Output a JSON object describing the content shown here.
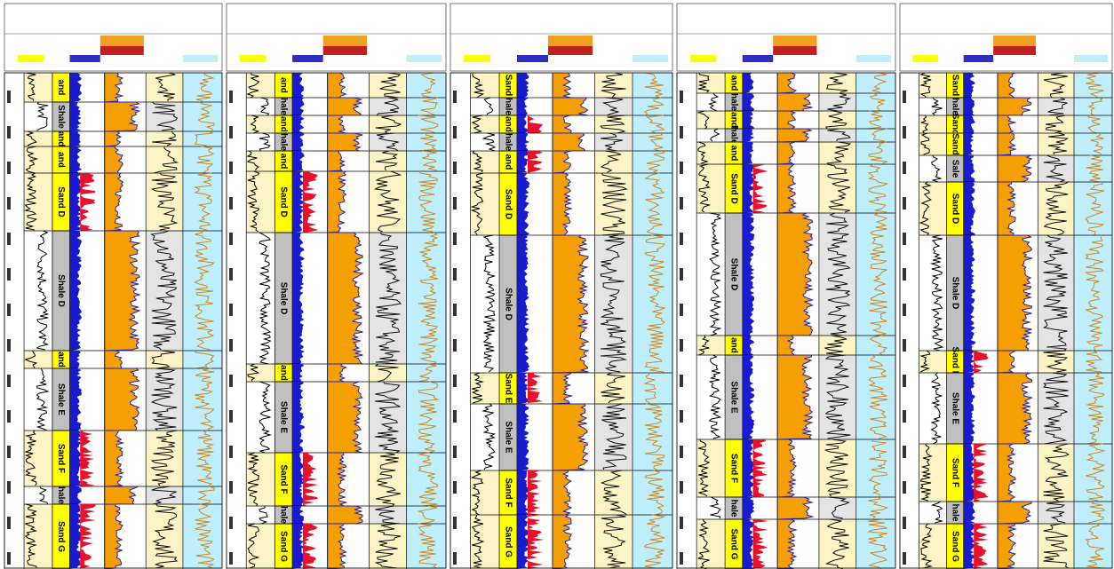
{
  "panels": [
    {
      "zones": [
        "and",
        "Shale",
        "and",
        "and",
        "Sand D",
        "Shale D",
        "and",
        "Shale E",
        "Sand F",
        "hale",
        "Sand G"
      ]
    },
    {
      "zones": [
        "and",
        "hale",
        "and",
        "hale",
        "and",
        "Sand D",
        "Shale D",
        "and",
        "Shale E",
        "Sand F",
        "hale",
        "Sand G"
      ]
    },
    {
      "zones": [
        "Sand",
        "hale",
        "and",
        "hale",
        "and",
        "Sand D",
        "Shale D",
        "Sand E",
        "Shale E",
        "Sand F",
        "Sand G"
      ]
    },
    {
      "zones": [
        "and",
        "hale",
        "and",
        "hale",
        "and",
        "Sand D",
        "Shale D",
        "and",
        "Shale E",
        "Sand F",
        "hale",
        "Sand G"
      ]
    },
    {
      "zones": [
        "Sand",
        "hale",
        "Sand",
        "Sand",
        "Sale",
        "Sand D",
        "Shale D",
        "Sand E",
        "Shale E",
        "Sand F",
        "hale",
        "Sand G"
      ]
    }
  ]
}
